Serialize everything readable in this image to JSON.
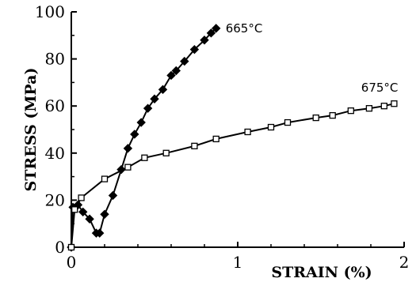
{
  "chart_data": {
    "type": "line",
    "xlabel": "STRAIN (%)",
    "ylabel": "STRESS (MPa)",
    "xlim": [
      0,
      2
    ],
    "ylim": [
      0,
      100
    ],
    "x_ticks": [
      0,
      1,
      2
    ],
    "y_ticks": [
      0,
      20,
      40,
      60,
      80,
      100
    ],
    "legend": "none (series labeled at line ends)",
    "grid": false,
    "series": [
      {
        "name": "665°C",
        "marker": "filled-diamond",
        "points": [
          [
            0,
            0
          ],
          [
            0.01,
            17
          ],
          [
            0.04,
            18
          ],
          [
            0.07,
            15
          ],
          [
            0.11,
            12
          ],
          [
            0.15,
            6
          ],
          [
            0.17,
            6
          ],
          [
            0.2,
            14
          ],
          [
            0.25,
            22
          ],
          [
            0.3,
            33
          ],
          [
            0.34,
            42
          ],
          [
            0.38,
            48
          ],
          [
            0.42,
            53
          ],
          [
            0.46,
            59
          ],
          [
            0.5,
            63
          ],
          [
            0.55,
            67
          ],
          [
            0.6,
            73
          ],
          [
            0.63,
            75
          ],
          [
            0.68,
            79
          ],
          [
            0.74,
            84
          ],
          [
            0.8,
            88
          ],
          [
            0.84,
            91
          ],
          [
            0.87,
            93
          ]
        ]
      },
      {
        "name": "675°C",
        "marker": "open-square",
        "points": [
          [
            0,
            0
          ],
          [
            0.02,
            16
          ],
          [
            0.06,
            21
          ],
          [
            0.2,
            29
          ],
          [
            0.34,
            34
          ],
          [
            0.44,
            38
          ],
          [
            0.57,
            40
          ],
          [
            0.74,
            43
          ],
          [
            0.87,
            46
          ],
          [
            1.06,
            49
          ],
          [
            1.2,
            51
          ],
          [
            1.3,
            53
          ],
          [
            1.47,
            55
          ],
          [
            1.57,
            56
          ],
          [
            1.68,
            58
          ],
          [
            1.79,
            59
          ],
          [
            1.88,
            60
          ],
          [
            1.94,
            61
          ]
        ]
      }
    ]
  }
}
